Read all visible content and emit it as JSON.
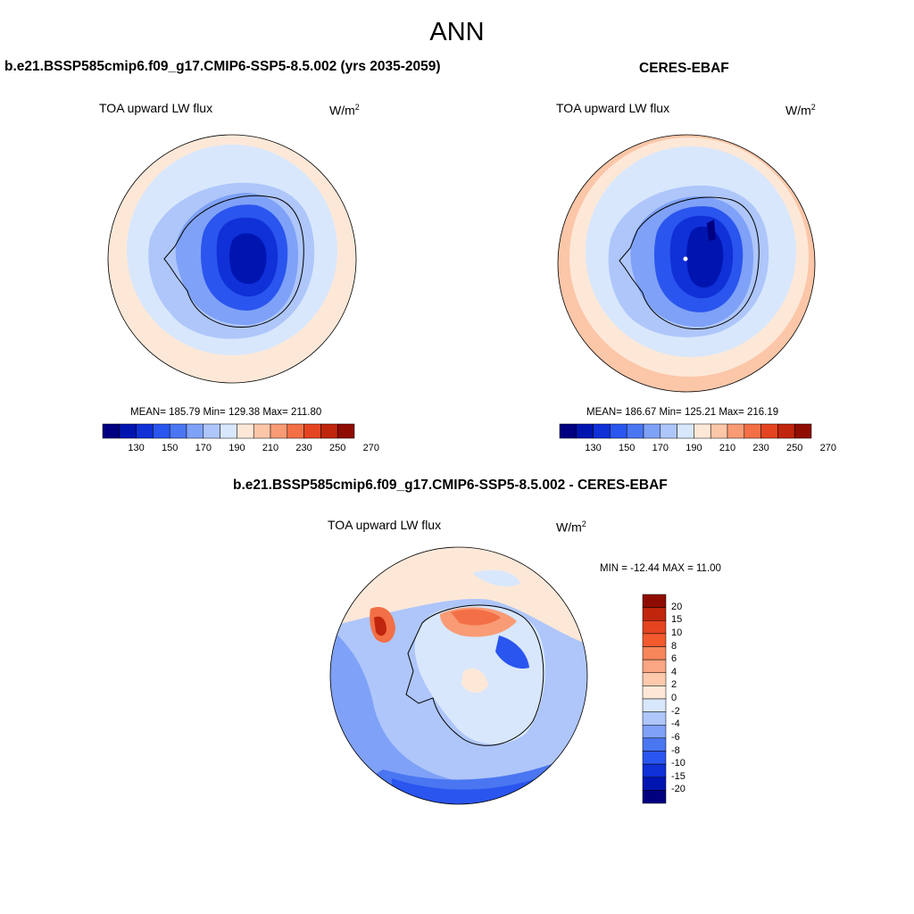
{
  "figure": {
    "season": "ANN"
  },
  "panels": {
    "model": {
      "title": "b.e21.BSSP585cmip6.f09_g17.CMIP6-SSP5-8.5.002 (yrs 2035-2059)",
      "variable": "TOA upward LW flux",
      "units_base": "W/m",
      "units_exp": "2",
      "stats": "MEAN= 185.79  Min= 129.38  Max= 211.80"
    },
    "obs": {
      "title": "CERES-EBAF",
      "variable": "TOA upward LW flux",
      "units_base": "W/m",
      "units_exp": "2",
      "stats": "MEAN= 186.67  Min= 125.21  Max= 216.19"
    },
    "diff": {
      "title": "b.e21.BSSP585cmip6.f09_g17.CMIP6-SSP5-8.5.002 - CERES-EBAF",
      "variable": "TOA upward LW flux",
      "units_base": "W/m",
      "units_exp": "2",
      "stats": "MIN = -12.44 MAX =  11.00"
    }
  },
  "colorbars": {
    "abs_labels": [
      "130",
      "150",
      "170",
      "190",
      "210",
      "230",
      "250",
      "270"
    ],
    "abs_colors": [
      "#000080",
      "#0015b0",
      "#1030d8",
      "#2a55ee",
      "#4a76f2",
      "#7fa1f7",
      "#aec6fa",
      "#d8e7fc",
      "#fde8d8",
      "#fcc6a8",
      "#f99b74",
      "#f36f46",
      "#e44420",
      "#c0250d",
      "#8f0c02"
    ],
    "diff_labels": [
      "20",
      "15",
      "10",
      "8",
      "6",
      "4",
      "2",
      "0",
      "-2",
      "-4",
      "-6",
      "-8",
      "-10",
      "-15",
      "-20"
    ],
    "diff_colors": [
      "#8f0c02",
      "#c0250d",
      "#e44420",
      "#f35a2e",
      "#f7865a",
      "#faa583",
      "#fcc9ac",
      "#fde8d8",
      "#d8e7fc",
      "#aec6fa",
      "#7fa1f7",
      "#4a76f2",
      "#2a55ee",
      "#1030d8",
      "#0015b0",
      "#000080"
    ]
  }
}
